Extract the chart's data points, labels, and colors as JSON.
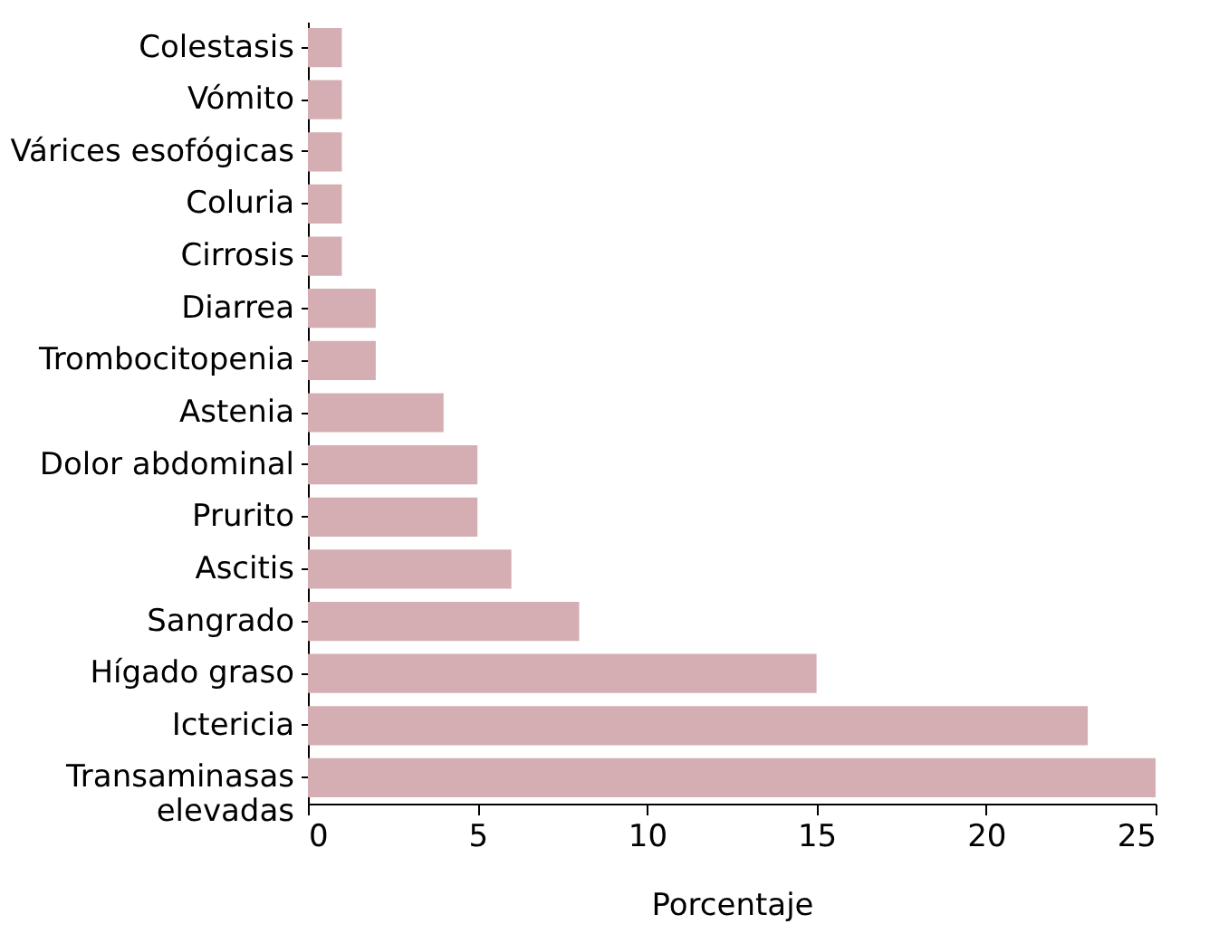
{
  "chart_data": {
    "type": "bar",
    "orientation": "horizontal",
    "xlabel": "Porcentaje",
    "categories": [
      "Colestasis",
      "Vómito",
      "Várices esofógicas",
      "Coluria",
      "Cirrosis",
      "Diarrea",
      "Trombocitopenia",
      "Astenia",
      "Dolor abdominal",
      "Prurito",
      "Ascitis",
      "Sangrado",
      "Hígado graso",
      "Ictericia",
      "Transaminasas\nelevadas"
    ],
    "values": [
      1,
      1,
      1,
      1,
      1,
      2,
      2,
      4,
      5,
      5,
      6,
      8,
      15,
      23,
      25
    ],
    "color": "#d4aeb2",
    "xlim": [
      0,
      25
    ],
    "xticks": [
      0,
      5,
      10,
      15,
      20,
      25
    ],
    "grid": false
  }
}
